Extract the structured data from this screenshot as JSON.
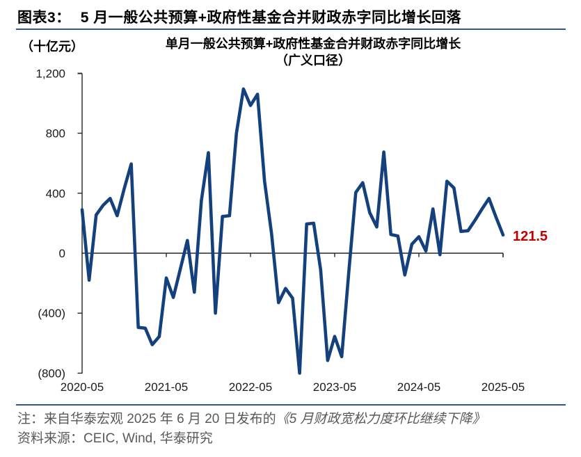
{
  "header": {
    "title_prefix": "图表3：",
    "title": "5 月一般公共预算+政府性基金合并财政赤字同比增长回落"
  },
  "rule_color": "#2F5496",
  "chart_data": {
    "type": "line",
    "title_line1": "单月一般公共预算+政府性基金合并财政赤字同比增长",
    "title_line2": "（广义口径）",
    "unit_label": "（十亿元）",
    "series_name": "单月一般公共预算+政府性基金合并财政赤字同比增长（广义口径）",
    "x": [
      "2020-05",
      "2020-06",
      "2020-07",
      "2020-08",
      "2020-09",
      "2020-10",
      "2020-11",
      "2020-12",
      "2021-01",
      "2021-02",
      "2021-03",
      "2021-04",
      "2021-05",
      "2021-06",
      "2021-07",
      "2021-08",
      "2021-09",
      "2021-10",
      "2021-11",
      "2021-12",
      "2022-01",
      "2022-02",
      "2022-03",
      "2022-04",
      "2022-05",
      "2022-06",
      "2022-07",
      "2022-08",
      "2022-09",
      "2022-10",
      "2022-11",
      "2022-12",
      "2023-01",
      "2023-02",
      "2023-03",
      "2023-04",
      "2023-05",
      "2023-06",
      "2023-07",
      "2023-08",
      "2023-09",
      "2023-10",
      "2023-11",
      "2023-12",
      "2024-01",
      "2024-02",
      "2024-03",
      "2024-04",
      "2024-05",
      "2024-06",
      "2024-07",
      "2024-08",
      "2024-09",
      "2024-10",
      "2024-11",
      "2024-12",
      "2025-01",
      "2025-02",
      "2025-03",
      "2025-04",
      "2025-05"
    ],
    "values": [
      290,
      -180,
      255,
      320,
      365,
      250,
      430,
      595,
      -495,
      -500,
      -610,
      -555,
      -165,
      -295,
      -105,
      85,
      -260,
      350,
      670,
      -400,
      245,
      250,
      800,
      1095,
      985,
      1060,
      480,
      130,
      -330,
      -235,
      -300,
      -800,
      195,
      200,
      -110,
      -715,
      -555,
      -690,
      -130,
      405,
      470,
      270,
      175,
      675,
      125,
      115,
      -145,
      60,
      110,
      15,
      295,
      -10,
      480,
      435,
      145,
      150,
      220,
      295,
      365,
      240,
      121.5
    ],
    "x_tick_labels": [
      "2020-05",
      "2021-05",
      "2022-05",
      "2023-05",
      "2024-05",
      "2025-05"
    ],
    "y_ticks": [
      1200,
      800,
      400,
      0,
      -400,
      -800
    ],
    "y_tick_labels": [
      "1,200",
      "800",
      "400",
      "0",
      "(400)",
      "(800)"
    ],
    "ylim": [
      -800,
      1200
    ],
    "grid": false,
    "legend_position": "none",
    "line_color": "#14407D",
    "axis_color": "#262626",
    "last_value_label": "121.5",
    "last_value_color": "#C00000"
  },
  "footer": {
    "note_prefix": "注：来自华泰宏观 2025 年 6 月 20 日发布的",
    "note_book": "《5 月财政宽松力度环比继续下降》",
    "source": "资料来源：CEIC, Wind, 华泰研究"
  }
}
